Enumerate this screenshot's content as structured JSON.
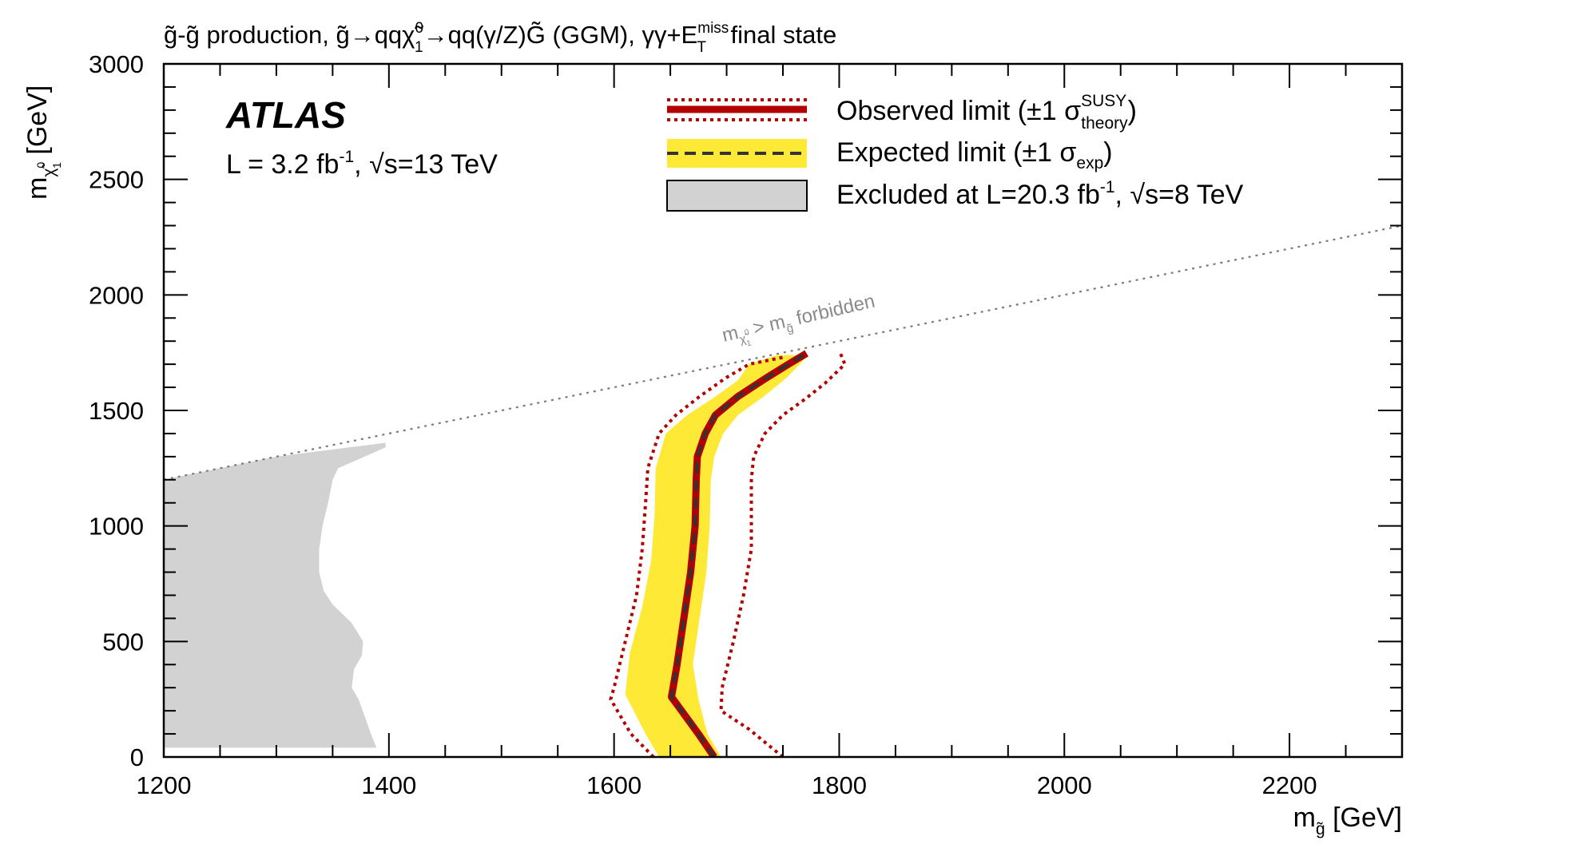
{
  "chart_data": {
    "type": "line",
    "title_parts": {
      "g1": "g̃",
      "dash": "-",
      "g2": "g̃",
      "prod": " production, ",
      "g3": "g̃",
      "arrow1": "→qq",
      "chi": "χ̃",
      "chi_sup": "0",
      "chi_sub": "1",
      "arrow2": "→qq(γ/Z)",
      "G": "G̃",
      "ggm": " (GGM), γγ+E",
      "miss_sup": "miss",
      "T_sub": "T",
      "final": " final state"
    },
    "xlabel": {
      "m": "m",
      "sub": "g̃",
      "unit": " [GeV]"
    },
    "ylabel": {
      "m": "m",
      "sub_chi": "χ̃",
      "sub_sup": "0",
      "sub_sub": "1",
      "unit": " [GeV]"
    },
    "xlim": [
      1200,
      2300
    ],
    "ylim": [
      0,
      3000
    ],
    "x_ticks": [
      "1200",
      "1400",
      "1600",
      "1800",
      "2000",
      "2200"
    ],
    "y_ticks": [
      "0",
      "500",
      "1000",
      "1500",
      "2000",
      "2500",
      "3000"
    ],
    "atlas_label": "ATLAS",
    "lumi_text": {
      "pre": "L = 3.2 fb",
      "sup": "-1",
      "mid": ",  ",
      "sqrt": "√",
      "s": "s=13 TeV"
    },
    "legend": {
      "observed": {
        "label": "Observed limit (±1 σ",
        "sup": "SUSY",
        "sub": "theory",
        "close": ")"
      },
      "expected": {
        "label": "Expected limit (±1 σ",
        "sub": "exp",
        "close": ")"
      },
      "excluded": {
        "label": "Excluded at L=20.3 fb",
        "sup": "-1",
        "mid": ",  ",
        "sqrt": "√",
        "s": "s=8 TeV"
      }
    },
    "forbidden_label": {
      "m": "m",
      "sub_chi": "χ̃",
      "sub_sup": "0",
      "sub_sub": "1",
      "gt": " > m",
      "sub_g": "g̃",
      "tail": " forbidden"
    },
    "forbidden_line": [
      [
        1200,
        1200
      ],
      [
        2300,
        2300
      ]
    ],
    "series": [
      {
        "name": "Observed limit",
        "color": "#b30000",
        "points": [
          [
            1689,
            0
          ],
          [
            1675,
            100
          ],
          [
            1660,
            200
          ],
          [
            1651,
            260
          ],
          [
            1656,
            400
          ],
          [
            1662,
            600
          ],
          [
            1668,
            800
          ],
          [
            1672,
            1000
          ],
          [
            1673,
            1200
          ],
          [
            1674,
            1300
          ],
          [
            1681,
            1400
          ],
          [
            1690,
            1480
          ],
          [
            1710,
            1560
          ],
          [
            1735,
            1640
          ],
          [
            1755,
            1700
          ],
          [
            1771,
            1747
          ]
        ]
      },
      {
        "name": "Observed +1 sigma theory",
        "color": "#b30000",
        "points": [
          [
            1750,
            0
          ],
          [
            1720,
            120
          ],
          [
            1695,
            200
          ],
          [
            1696,
            300
          ],
          [
            1706,
            500
          ],
          [
            1715,
            700
          ],
          [
            1722,
            900
          ],
          [
            1722,
            1100
          ],
          [
            1722,
            1200
          ],
          [
            1724,
            1300
          ],
          [
            1734,
            1400
          ],
          [
            1750,
            1480
          ],
          [
            1770,
            1550
          ],
          [
            1788,
            1620
          ],
          [
            1805,
            1700
          ],
          [
            1800,
            1760
          ]
        ]
      },
      {
        "name": "Observed -1 sigma theory",
        "color": "#b30000",
        "points": [
          [
            1635,
            0
          ],
          [
            1615,
            100
          ],
          [
            1597,
            250
          ],
          [
            1600,
            300
          ],
          [
            1610,
            500
          ],
          [
            1620,
            700
          ],
          [
            1625,
            900
          ],
          [
            1628,
            1100
          ],
          [
            1630,
            1250
          ],
          [
            1640,
            1400
          ],
          [
            1655,
            1480
          ],
          [
            1676,
            1560
          ],
          [
            1699,
            1640
          ],
          [
            1720,
            1700
          ],
          [
            1750,
            1730
          ]
        ]
      },
      {
        "name": "Expected limit",
        "color": "#333333",
        "points": [
          [
            1689,
            0
          ],
          [
            1675,
            100
          ],
          [
            1660,
            200
          ],
          [
            1651,
            260
          ],
          [
            1656,
            400
          ],
          [
            1662,
            600
          ],
          [
            1668,
            800
          ],
          [
            1672,
            1000
          ],
          [
            1673,
            1200
          ],
          [
            1674,
            1300
          ],
          [
            1681,
            1400
          ],
          [
            1690,
            1480
          ],
          [
            1710,
            1560
          ],
          [
            1735,
            1640
          ],
          [
            1755,
            1700
          ],
          [
            1771,
            1747
          ]
        ]
      }
    ],
    "expected_band": {
      "color": "#fde936",
      "upper": [
        [
          1695,
          0
        ],
        [
          1683,
          100
        ],
        [
          1675,
          250
        ],
        [
          1670,
          400
        ],
        [
          1676,
          600
        ],
        [
          1682,
          800
        ],
        [
          1685,
          1000
        ],
        [
          1686,
          1200
        ],
        [
          1689,
          1300
        ],
        [
          1697,
          1400
        ],
        [
          1710,
          1480
        ],
        [
          1733,
          1560
        ],
        [
          1753,
          1640
        ],
        [
          1767,
          1710
        ],
        [
          1772,
          1740
        ]
      ],
      "lower": [
        [
          1640,
          0
        ],
        [
          1628,
          100
        ],
        [
          1610,
          270
        ],
        [
          1614,
          450
        ],
        [
          1625,
          650
        ],
        [
          1633,
          850
        ],
        [
          1636,
          1050
        ],
        [
          1637,
          1250
        ],
        [
          1646,
          1400
        ],
        [
          1665,
          1480
        ],
        [
          1690,
          1560
        ],
        [
          1710,
          1630
        ],
        [
          1720,
          1700
        ],
        [
          1745,
          1740
        ]
      ]
    },
    "excluded_8tev": {
      "color": "#d2d2d2",
      "points": [
        [
          1200,
          40
        ],
        [
          1389,
          40
        ],
        [
          1384,
          100
        ],
        [
          1379,
          170
        ],
        [
          1373,
          250
        ],
        [
          1367,
          300
        ],
        [
          1369,
          380
        ],
        [
          1376,
          440
        ],
        [
          1377,
          500
        ],
        [
          1367,
          580
        ],
        [
          1350,
          660
        ],
        [
          1342,
          720
        ],
        [
          1338,
          800
        ],
        [
          1338,
          900
        ],
        [
          1341,
          1000
        ],
        [
          1346,
          1100
        ],
        [
          1350,
          1200
        ],
        [
          1355,
          1250
        ],
        [
          1383,
          1310
        ],
        [
          1397,
          1340
        ],
        [
          1397,
          1360
        ],
        [
          1300,
          1300
        ],
        [
          1200,
          1200
        ]
      ]
    }
  }
}
